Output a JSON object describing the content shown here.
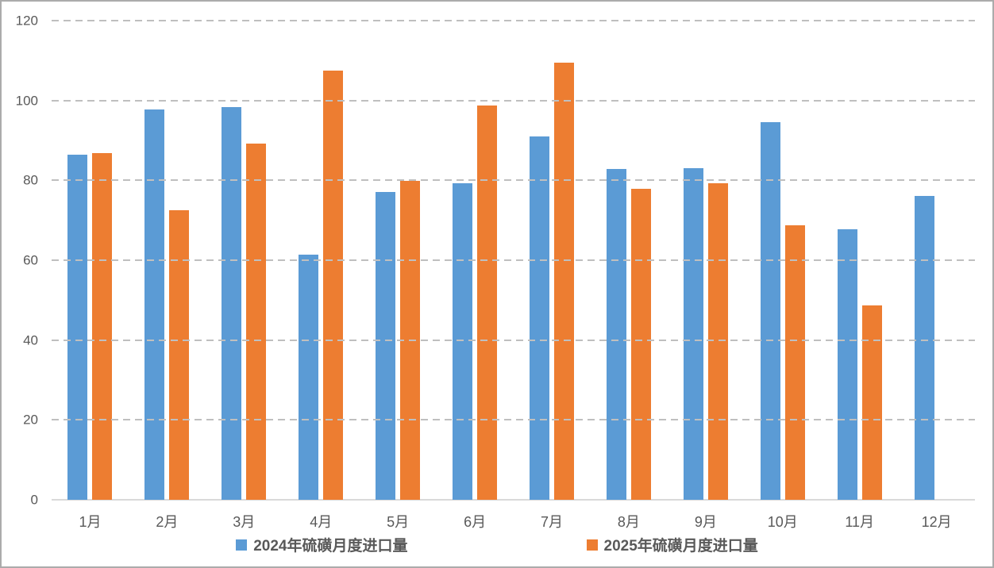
{
  "chart_data": {
    "type": "bar",
    "title": "",
    "xlabel": "",
    "ylabel": "",
    "categories": [
      "1月",
      "2月",
      "3月",
      "4月",
      "5月",
      "6月",
      "7月",
      "8月",
      "9月",
      "10月",
      "11月",
      "12月"
    ],
    "series": [
      {
        "key": "2024",
        "name": "2024年硫磺月度进口量",
        "color": "#5B9BD5",
        "values": [
          86.5,
          97.8,
          98.3,
          61.4,
          77.0,
          79.2,
          90.9,
          82.9,
          83.1,
          94.5,
          67.7,
          76.1
        ]
      },
      {
        "key": "2025",
        "name": "2025年硫磺月度进口量",
        "color": "#ED7D31",
        "values": [
          86.9,
          72.5,
          89.3,
          107.4,
          79.8,
          98.8,
          109.4,
          77.9,
          79.2,
          68.7,
          48.7,
          null
        ]
      }
    ],
    "ylim": [
      0,
      120
    ],
    "yticks": [
      0,
      20,
      40,
      60,
      80,
      100,
      120
    ],
    "grid": "horizontal-dashed",
    "legend_position": "bottom"
  },
  "style": {
    "axis_text_color": "#595959",
    "gridline_color": "#BFBFBF",
    "baseline_color": "#D9D9D9",
    "border_color": "#ABABAB",
    "background": "#FFFFFF"
  }
}
